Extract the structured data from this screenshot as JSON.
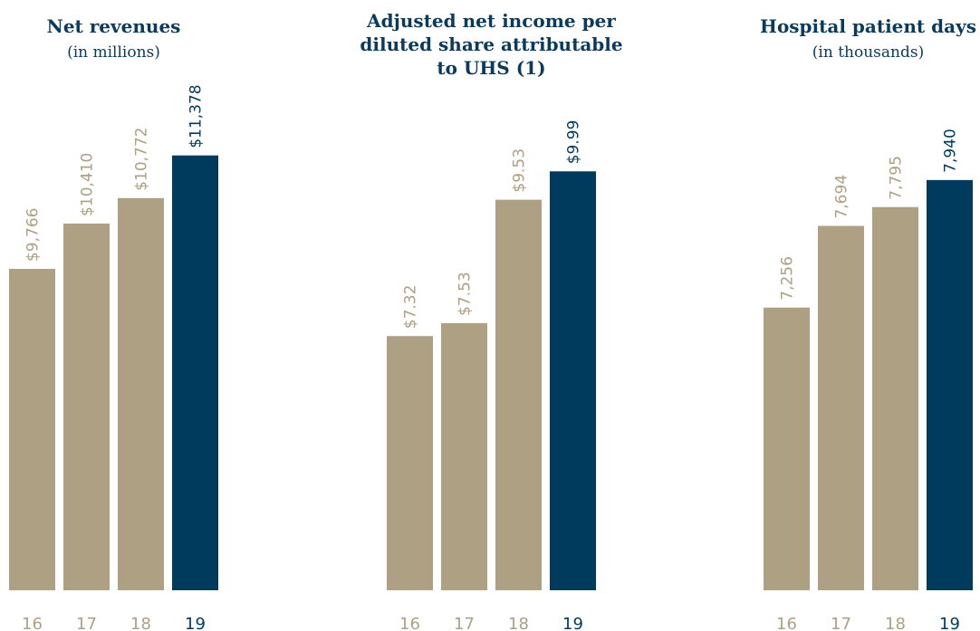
{
  "chart_data": [
    {
      "type": "bar",
      "title": "Net revenues",
      "subtitle": "(in millions)",
      "categories": [
        "16",
        "17",
        "18",
        "19"
      ],
      "values": [
        9766,
        10410,
        10772,
        11378
      ],
      "value_labels": [
        "$9,766",
        "$10,410",
        "$10,772",
        "$11,378"
      ],
      "colors": [
        "#ada083",
        "#ada083",
        "#ada083",
        "#003a5d"
      ],
      "ylim": [
        5200,
        12300
      ]
    },
    {
      "type": "bar",
      "title": [
        "Adjusted net income per",
        "diluted share attributable",
        "to UHS (1)"
      ],
      "categories": [
        "16",
        "17",
        "18",
        "19"
      ],
      "values": [
        7.32,
        7.53,
        9.53,
        9.99
      ],
      "value_labels": [
        "$7.32",
        "$7.53",
        "$9.53",
        "$9.99"
      ],
      "colors": [
        "#ada083",
        "#ada083",
        "#ada083",
        "#003a5d"
      ],
      "ylim": [
        3.2,
        11.3
      ]
    },
    {
      "type": "bar",
      "title": "Hospital patient days",
      "subtitle": "(in thousands)",
      "categories": [
        "16",
        "17",
        "18",
        "19"
      ],
      "values": [
        7256,
        7694,
        7795,
        7940
      ],
      "value_labels": [
        "7,256",
        "7,694",
        "7,795",
        "7,940"
      ],
      "colors": [
        "#ada083",
        "#ada083",
        "#ada083",
        "#003a5d"
      ],
      "ylim": [
        5740,
        8420
      ]
    }
  ]
}
